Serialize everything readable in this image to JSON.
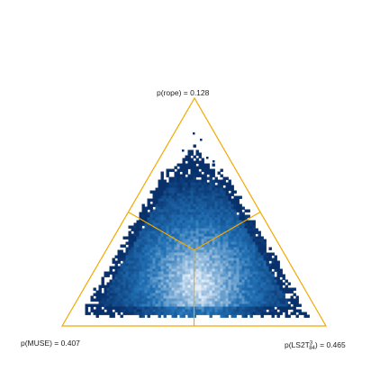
{
  "chart_data": {
    "type": "scatter",
    "subtype": "ternary-posterior",
    "title": "",
    "vertices": [
      {
        "key": "top",
        "prefix": "p(rope) = ",
        "value": "0.128",
        "probability": 0.128
      },
      {
        "key": "left",
        "prefix": "p(MUSE) = ",
        "value": "0.407",
        "probability": 0.407
      },
      {
        "key": "right",
        "prefix": "p(LS2T",
        "sup": "3",
        "sub": "84",
        "suffix": ") = ",
        "value": "0.465",
        "probability": 0.465
      }
    ],
    "region_lines": "three lines from centroid to edge midpoints",
    "legend": "none",
    "grid": false
  },
  "colors": {
    "frame": "#f2a900",
    "density_low": "#08306b",
    "density_mid": "#2171b5",
    "density_high": "#e3eef9",
    "text": "#222222"
  }
}
